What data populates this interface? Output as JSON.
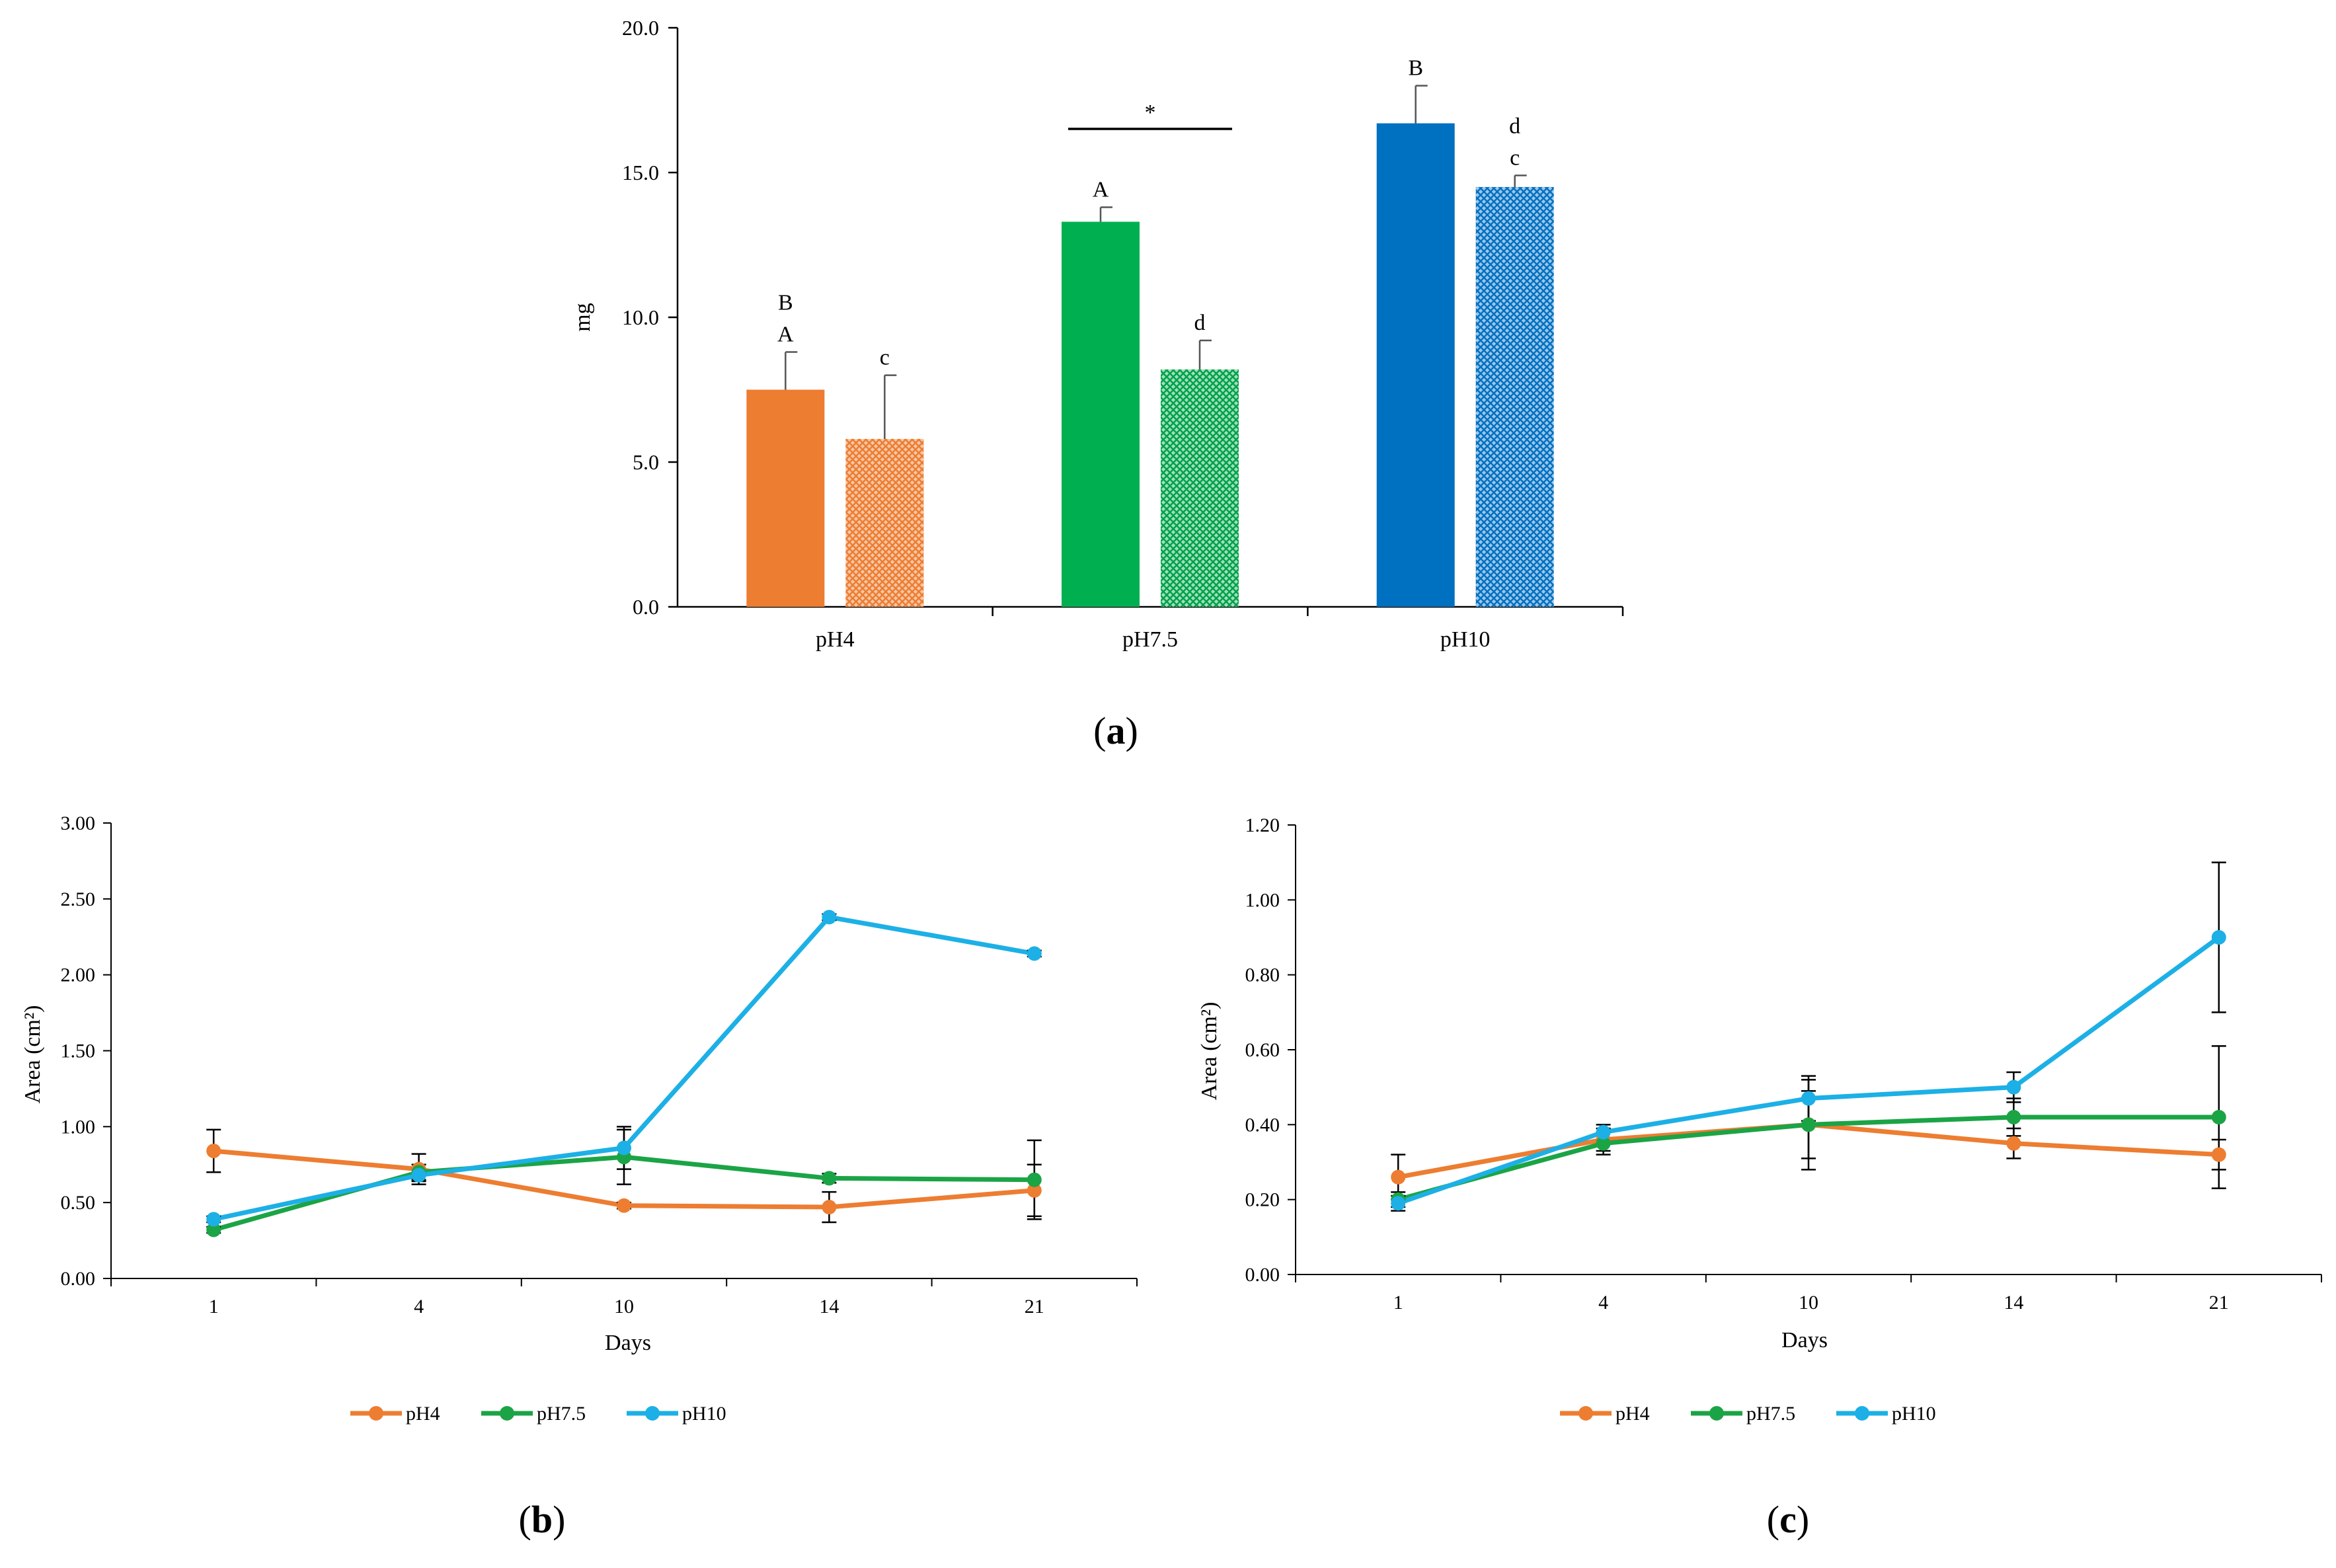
{
  "colors": {
    "ph4": "#ED7D31",
    "ph75": "#00B050",
    "ph10": "#0070C0",
    "ph4_line": "#ED7D31",
    "ph75_line": "#1BA446",
    "ph10_line": "#1CB0E6",
    "axis": "#000000"
  },
  "chart_data": [
    {
      "panel_label": "a",
      "type": "bar",
      "ylabel": "mg",
      "ylim": [
        0,
        20
      ],
      "yticks": [
        "0.0",
        "5.0",
        "10.0",
        "15.0",
        "20.0"
      ],
      "categories": [
        "pH4",
        "pH7.5",
        "pH10"
      ],
      "series": [
        {
          "name": "solid",
          "values": [
            7.5,
            13.3,
            16.7
          ],
          "errors": [
            1.3,
            0.5,
            1.3
          ],
          "letters": [
            "B\nA",
            "A",
            "B"
          ]
        },
        {
          "name": "hatched",
          "values": [
            5.8,
            8.2,
            14.5
          ],
          "errors": [
            2.2,
            1.0,
            0.4
          ],
          "letters": [
            "c",
            "d",
            "d\nc"
          ]
        }
      ],
      "annotations": [
        {
          "text": "*",
          "category": "pH7.5",
          "type": "bracket"
        }
      ]
    },
    {
      "panel_label": "b",
      "type": "line",
      "xlabel": "Days",
      "ylabel": "Area (cm²)",
      "ylim": [
        0,
        3
      ],
      "yticks": [
        "0.00",
        "0.50",
        "1.00",
        "1.50",
        "2.00",
        "2.50",
        "3.00"
      ],
      "x": [
        "1",
        "4",
        "10",
        "14",
        "21"
      ],
      "series": [
        {
          "name": "pH4",
          "values": [
            0.84,
            0.72,
            0.48,
            0.47,
            0.58
          ],
          "errors": [
            0.14,
            0.1,
            0.02,
            0.1,
            0.17
          ]
        },
        {
          "name": "pH7.5",
          "values": [
            0.32,
            0.7,
            0.8,
            0.66,
            0.65
          ],
          "errors": [
            0.02,
            0.05,
            0.18,
            0.03,
            0.26
          ]
        },
        {
          "name": "pH10",
          "values": [
            0.39,
            0.68,
            0.86,
            2.38,
            2.14
          ],
          "errors": [
            0.02,
            0.04,
            0.14,
            0.02,
            0.02
          ]
        }
      ]
    },
    {
      "panel_label": "c",
      "type": "line",
      "xlabel": "Days",
      "ylabel": "Area (cm²)",
      "ylim": [
        0,
        1.2
      ],
      "yticks": [
        "0.00",
        "0.20",
        "0.40",
        "0.60",
        "0.80",
        "1.00",
        "1.20"
      ],
      "x": [
        "1",
        "4",
        "10",
        "14",
        "21"
      ],
      "series": [
        {
          "name": "pH4",
          "values": [
            0.26,
            0.36,
            0.4,
            0.35,
            0.32
          ],
          "errors": [
            0.06,
            0.03,
            0.09,
            0.04,
            0.04
          ]
        },
        {
          "name": "pH7.5",
          "values": [
            0.2,
            0.35,
            0.4,
            0.42,
            0.42
          ],
          "errors": [
            0.02,
            0.03,
            0.12,
            0.05,
            0.19
          ]
        },
        {
          "name": "pH10",
          "values": [
            0.19,
            0.38,
            0.47,
            0.5,
            0.9
          ],
          "errors": [
            0.02,
            0.02,
            0.06,
            0.04,
            0.2
          ]
        }
      ]
    }
  ]
}
